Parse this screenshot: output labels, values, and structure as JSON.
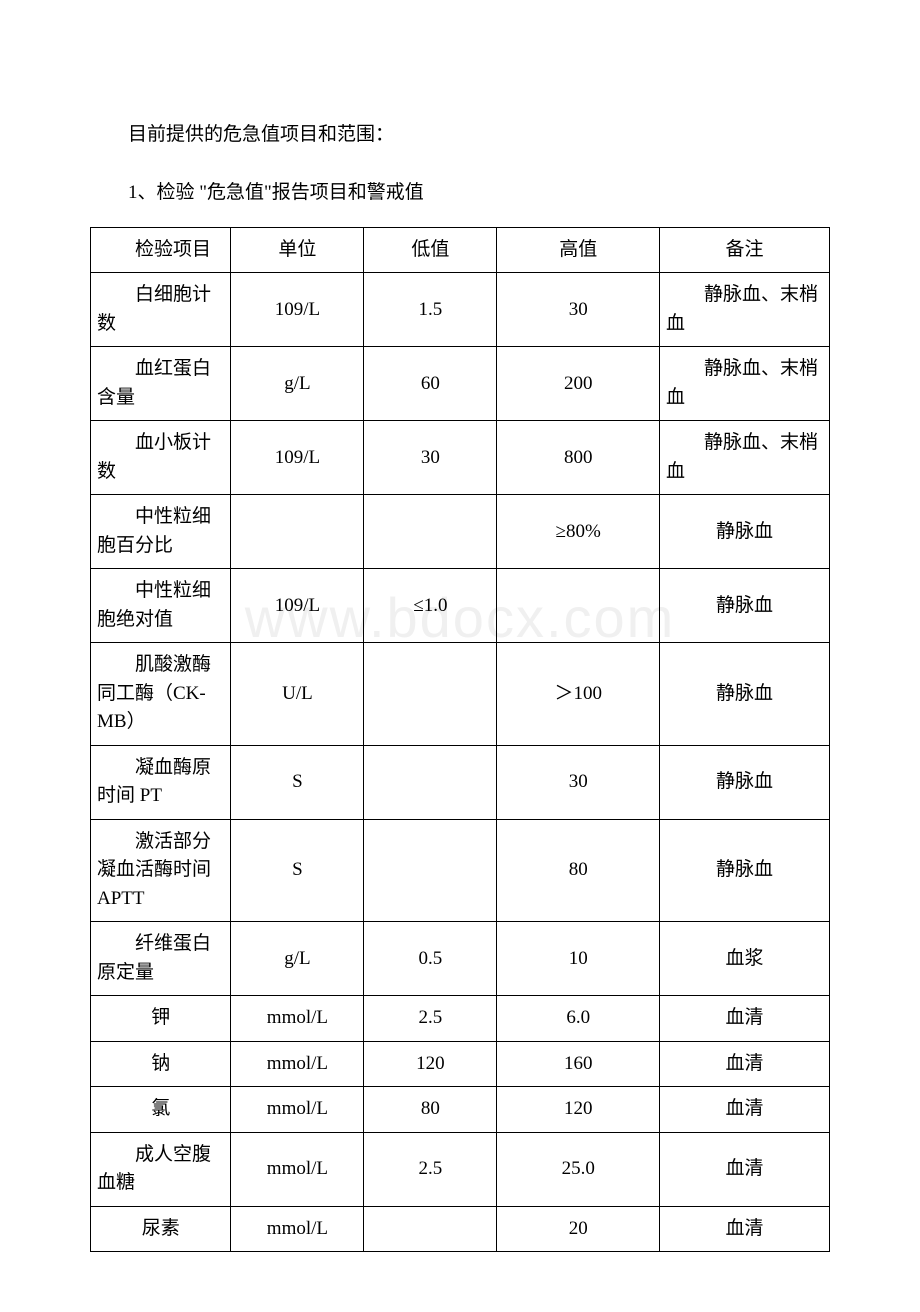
{
  "watermark_text": "www.bdocx.com",
  "intro": "目前提供的危急值项目和范围：",
  "section_label": "1、检验 \"危急值\"报告项目和警戒值",
  "table": {
    "headers": {
      "c1": "检验项目",
      "c2": "单位",
      "c3": "低值",
      "c4": "高值",
      "c5": "备注"
    },
    "rows": [
      {
        "item": "白细胞计数",
        "unit": "109/L",
        "low": "1.5",
        "high": "30",
        "note": "静脉血、末梢血"
      },
      {
        "item": "血红蛋白含量",
        "unit": "g/L",
        "low": "60",
        "high": "200",
        "note": "静脉血、末梢血"
      },
      {
        "item": "血小板计数",
        "unit": "109/L",
        "low": "30",
        "high": "800",
        "note": "静脉血、末梢血"
      },
      {
        "item": "中性粒细胞百分比",
        "unit": "",
        "low": "",
        "high": "≥80%",
        "note": "静脉血"
      },
      {
        "item": "中性粒细胞绝对值",
        "unit": "109/L",
        "low": "≤1.0",
        "high": "",
        "note": "静脉血"
      },
      {
        "item": "肌酸激酶同工酶（CK-MB）",
        "unit": "U/L",
        "low": "",
        "high": "＞100",
        "note": "静脉血"
      },
      {
        "item": "凝血酶原时间 PT",
        "unit": "S",
        "low": "",
        "high": "30",
        "note": "静脉血"
      },
      {
        "item": "激活部分凝血活酶时间 APTT",
        "unit": "S",
        "low": "",
        "high": "80",
        "note": "静脉血"
      },
      {
        "item": "纤维蛋白原定量",
        "unit": "g/L",
        "low": "0.5",
        "high": "10",
        "note": "血浆"
      },
      {
        "item": "钾",
        "unit": "mmol/L",
        "low": "2.5",
        "high": "6.0",
        "note": "血清"
      },
      {
        "item": "钠",
        "unit": "mmol/L",
        "low": "120",
        "high": "160",
        "note": "血清"
      },
      {
        "item": "氯",
        "unit": "mmol/L",
        "low": "80",
        "high": "120",
        "note": "血清"
      },
      {
        "item": "成人空腹血糖",
        "unit": "mmol/L",
        "low": "2.5",
        "high": "25.0",
        "note": "血清"
      },
      {
        "item": "尿素",
        "unit": "mmol/L",
        "low": "",
        "high": "20",
        "note": "血清"
      }
    ]
  },
  "styling": {
    "page_background": "#ffffff",
    "text_color": "#000000",
    "border_color": "#000000",
    "watermark_color": "#f0f0f0",
    "font_family": "SimSun",
    "body_fontsize": 19,
    "watermark_fontsize": 56
  }
}
